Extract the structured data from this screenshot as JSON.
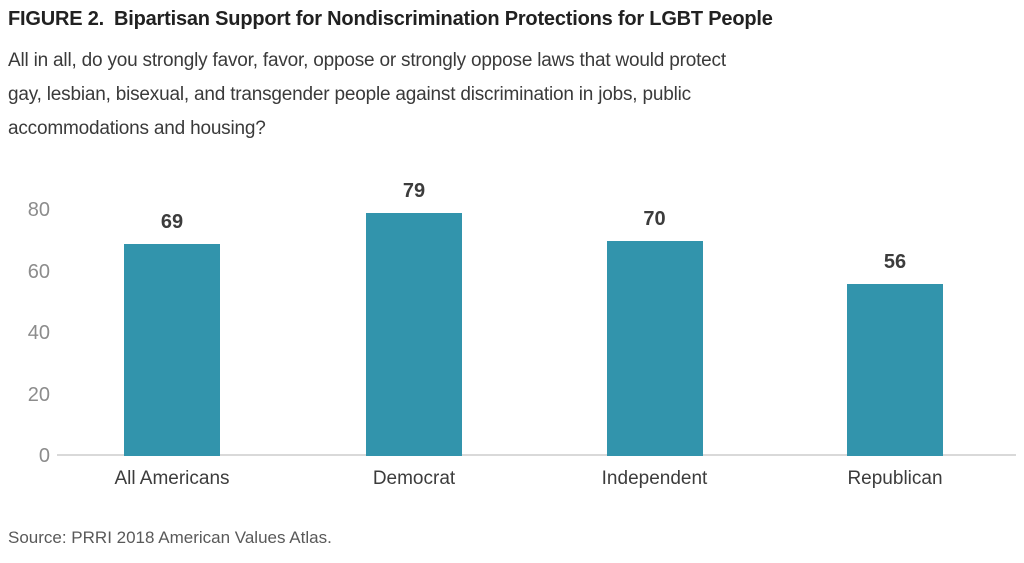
{
  "figure": {
    "label": "FIGURE 2.",
    "title": "Bipartisan Support for Nondiscrimination Protections for LGBT People",
    "subtitle_lines": [
      "All in all, do you strongly favor, favor, oppose or strongly oppose laws that would protect",
      "gay, lesbian, bisexual, and transgender people against discrimination in jobs, public",
      "accommodations and housing?"
    ],
    "source": "Source: PRRI 2018 American Values Atlas."
  },
  "chart_data": {
    "type": "bar",
    "categories": [
      "All Americans",
      "Democrat",
      "Independent",
      "Republican"
    ],
    "values": [
      69,
      79,
      70,
      56
    ],
    "title": "Bipartisan Support for Nondiscrimination Protections for LGBT People",
    "xlabel": "",
    "ylabel": "",
    "ylim": [
      0,
      80
    ],
    "y_ticks": [
      0,
      20,
      40,
      60,
      80
    ],
    "bar_color": "#3294ac",
    "value_label_color": "#3c3c3c",
    "axis_label_color": "#8c8c8c",
    "baseline_color": "#d9d9d9",
    "grid": false,
    "legend": false,
    "data_labels": true
  }
}
